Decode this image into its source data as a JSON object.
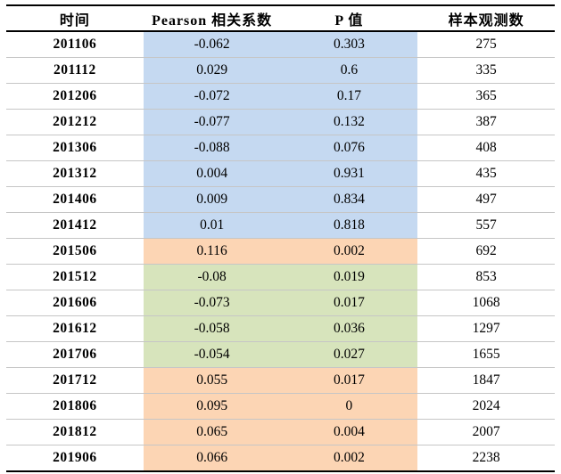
{
  "chart_data": {
    "type": "table",
    "title": "",
    "columns": [
      "时间",
      "Pearson 相关系数",
      "P 值",
      "样本观测数"
    ],
    "rows": [
      {
        "time": "201106",
        "pearson": "-0.062",
        "p_value": "0.303",
        "n_obs": "275",
        "highlight": "blue"
      },
      {
        "time": "201112",
        "pearson": "0.029",
        "p_value": "0.6",
        "n_obs": "335",
        "highlight": "blue"
      },
      {
        "time": "201206",
        "pearson": "-0.072",
        "p_value": "0.17",
        "n_obs": "365",
        "highlight": "blue"
      },
      {
        "time": "201212",
        "pearson": "-0.077",
        "p_value": "0.132",
        "n_obs": "387",
        "highlight": "blue"
      },
      {
        "time": "201306",
        "pearson": "-0.088",
        "p_value": "0.076",
        "n_obs": "408",
        "highlight": "blue"
      },
      {
        "time": "201312",
        "pearson": "0.004",
        "p_value": "0.931",
        "n_obs": "435",
        "highlight": "blue"
      },
      {
        "time": "201406",
        "pearson": "0.009",
        "p_value": "0.834",
        "n_obs": "497",
        "highlight": "blue"
      },
      {
        "time": "201412",
        "pearson": "0.01",
        "p_value": "0.818",
        "n_obs": "557",
        "highlight": "blue"
      },
      {
        "time": "201506",
        "pearson": "0.116",
        "p_value": "0.002",
        "n_obs": "692",
        "highlight": "orange"
      },
      {
        "time": "201512",
        "pearson": "-0.08",
        "p_value": "0.019",
        "n_obs": "853",
        "highlight": "green"
      },
      {
        "time": "201606",
        "pearson": "-0.073",
        "p_value": "0.017",
        "n_obs": "1068",
        "highlight": "green"
      },
      {
        "time": "201612",
        "pearson": "-0.058",
        "p_value": "0.036",
        "n_obs": "1297",
        "highlight": "green"
      },
      {
        "time": "201706",
        "pearson": "-0.054",
        "p_value": "0.027",
        "n_obs": "1655",
        "highlight": "green"
      },
      {
        "time": "201712",
        "pearson": "0.055",
        "p_value": "0.017",
        "n_obs": "1847",
        "highlight": "orange"
      },
      {
        "time": "201806",
        "pearson": "0.095",
        "p_value": "0",
        "n_obs": "2024",
        "highlight": "orange"
      },
      {
        "time": "201812",
        "pearson": "0.065",
        "p_value": "0.004",
        "n_obs": "2007",
        "highlight": "orange"
      },
      {
        "time": "201906",
        "pearson": "0.066",
        "p_value": "0.002",
        "n_obs": "2238",
        "highlight": "orange"
      }
    ],
    "highlight_colors": {
      "blue": "#C5D9F1",
      "orange": "#FCD5B4",
      "green": "#D7E4BC"
    },
    "colors": {
      "rule": "#000000",
      "row_divider": "#C6C6C6",
      "background": "#FFFFFF",
      "text": "#000000"
    },
    "layout": {
      "highlighted_columns": [
        "Pearson 相关系数",
        "P 值"
      ],
      "grid": "horizontal-only",
      "header_bold": true,
      "time_column_bold": true
    }
  }
}
